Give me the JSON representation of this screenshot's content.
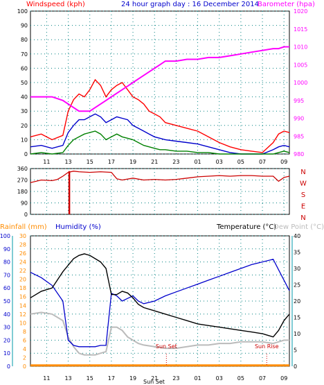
{
  "title": "24 hour graph day : 16 December 2014",
  "colors": {
    "wind": "#ff0000",
    "gust": "#ff0000",
    "avg_wind": "#0000cc",
    "low_wind": "#008000",
    "baro": "#ff00ff",
    "direction": "#cc0000",
    "rain": "#ff8c00",
    "humidity": "#0000cc",
    "temp": "#000000",
    "dew": "#bbbbbb",
    "axis_left": "#ff0000",
    "axis_blue": "#0000cc",
    "axis_cyan": "#0099aa",
    "grid": "#008080"
  },
  "x_ticks": [
    "11",
    "13",
    "15",
    "17",
    "19",
    "21",
    "23",
    "01",
    "03",
    "05",
    "07",
    "09"
  ],
  "chart_data": [
    {
      "type": "line",
      "name": "wind-baro",
      "left_label": "Windspeed (kph)",
      "right_label": "Barometer (hpa)",
      "ylim": [
        0,
        100
      ],
      "yticks": [
        0,
        10,
        20,
        30,
        40,
        50,
        60,
        70,
        80,
        90,
        100
      ],
      "y2lim": [
        980,
        1020
      ],
      "y2ticks": [
        980,
        985,
        990,
        995,
        1000,
        1005,
        1010,
        1015,
        1020
      ],
      "x": [
        9.5,
        10.5,
        11.5,
        12.5,
        13,
        13.5,
        14,
        14.5,
        15,
        15.5,
        16,
        16.5,
        17,
        17.5,
        18,
        18.5,
        19,
        19.5,
        20,
        20.5,
        21,
        21.5,
        22,
        23,
        24,
        25,
        26,
        27,
        28,
        29,
        30,
        31,
        32,
        32.5,
        33,
        33.5
      ],
      "series": [
        {
          "role": "gust",
          "values": [
            12,
            14,
            10,
            13,
            30,
            38,
            42,
            40,
            45,
            52,
            48,
            40,
            45,
            48,
            50,
            45,
            40,
            38,
            35,
            30,
            28,
            26,
            22,
            20,
            18,
            16,
            12,
            8,
            5,
            3,
            2,
            1,
            8,
            14,
            16,
            15
          ]
        },
        {
          "role": "avg",
          "values": [
            5,
            6,
            4,
            6,
            15,
            20,
            24,
            24,
            26,
            28,
            26,
            22,
            24,
            26,
            25,
            24,
            20,
            18,
            16,
            14,
            12,
            11,
            10,
            9,
            8,
            7,
            5,
            3,
            1,
            0,
            0,
            0,
            3,
            5,
            6,
            5
          ]
        },
        {
          "role": "low",
          "values": [
            0,
            1,
            0,
            1,
            6,
            10,
            12,
            14,
            15,
            16,
            14,
            10,
            12,
            14,
            12,
            11,
            10,
            8,
            6,
            5,
            4,
            3,
            3,
            2,
            2,
            1,
            1,
            0,
            0,
            0,
            0,
            0,
            0,
            1,
            2,
            1
          ]
        },
        {
          "role": "baro",
          "values": [
            996,
            996,
            996,
            995,
            994,
            993,
            992,
            992,
            992,
            993,
            994,
            995,
            996,
            997,
            998,
            999,
            1000,
            1001,
            1002,
            1003,
            1004,
            1005,
            1006,
            1006,
            1006.5,
            1006.5,
            1007,
            1007,
            1007.5,
            1008,
            1008.5,
            1009,
            1009.5,
            1009.5,
            1010,
            1010
          ]
        }
      ]
    },
    {
      "type": "line",
      "name": "wind-direction",
      "yticks": [
        0,
        90,
        180,
        270,
        360
      ],
      "ylim": [
        0,
        360
      ],
      "compass": [
        "N",
        "W",
        "S",
        "E",
        "N"
      ],
      "x": [
        9.5,
        10.5,
        11.5,
        12,
        12.5,
        13,
        13.5,
        14,
        15,
        16,
        17,
        17.5,
        18,
        19,
        20,
        21,
        22,
        23,
        24,
        25,
        26,
        27,
        28,
        29,
        30,
        31,
        32,
        32.5,
        33,
        33.5
      ],
      "values": [
        250,
        270,
        265,
        275,
        300,
        330,
        340,
        335,
        330,
        335,
        330,
        280,
        270,
        285,
        270,
        275,
        270,
        275,
        285,
        295,
        300,
        305,
        300,
        305,
        305,
        300,
        300,
        260,
        290,
        300
      ],
      "spike": {
        "x": 13.1,
        "from": 0,
        "to": 340
      }
    },
    {
      "type": "line",
      "name": "rain-humidity-temp",
      "left_labels": [
        "Rainfall (mm)",
        "Humidity (%)"
      ],
      "right_labels": [
        "Temperature (°C)",
        "Dew Point (°C)"
      ],
      "rain_ticks": [
        0,
        2,
        4,
        6,
        8,
        10,
        12,
        14,
        16,
        18,
        20,
        22,
        24,
        26,
        28,
        30
      ],
      "rain_lim": [
        0,
        30
      ],
      "hum_ticks": [
        0,
        10,
        20,
        30,
        40,
        50,
        60,
        70,
        80,
        90,
        100
      ],
      "hum_lim": [
        0,
        100
      ],
      "temp_ticks": [
        0,
        5,
        10,
        15,
        20,
        25,
        30,
        35,
        40
      ],
      "temp_lim": [
        0,
        40
      ],
      "x": [
        9.5,
        10.5,
        11.5,
        12.5,
        13,
        13.5,
        14,
        14.5,
        15,
        15.5,
        16,
        16.5,
        17,
        17.5,
        18,
        18.5,
        19,
        19.5,
        20,
        21,
        22,
        23,
        24,
        25,
        26,
        27,
        28,
        29,
        30,
        31,
        32,
        32.5,
        33,
        33.5
      ],
      "series": [
        {
          "role": "rain",
          "values": [
            0.2,
            0.2,
            0.2,
            0.2,
            0.2,
            0.2,
            0.2,
            0.2,
            0.2,
            0.2,
            0.2,
            0.2,
            0.2,
            0.2,
            0.2,
            0.2,
            0.2,
            0.2,
            0.2,
            0.2,
            0.2,
            0.2,
            0.2,
            0.2,
            0.2,
            0.2,
            0.2,
            0.2,
            0.2,
            0.2,
            0.2,
            0.2,
            0.2,
            0.2
          ]
        },
        {
          "role": "humidity",
          "values": [
            72,
            68,
            62,
            50,
            20,
            16,
            15,
            15,
            15,
            15,
            16,
            16,
            56,
            54,
            50,
            52,
            54,
            50,
            48,
            50,
            54,
            57,
            60,
            63,
            66,
            69,
            72,
            75,
            78,
            80,
            82,
            74,
            66,
            58
          ]
        },
        {
          "role": "temp",
          "values": [
            21,
            23,
            24,
            29,
            31,
            33,
            34,
            34.5,
            34,
            33,
            32,
            30,
            22,
            22,
            23,
            22.5,
            21,
            19,
            18,
            17,
            16,
            15,
            14,
            13,
            12.5,
            12,
            11.5,
            11,
            10.5,
            10,
            9,
            11,
            14,
            16
          ]
        },
        {
          "role": "dew",
          "values": [
            16,
            16.5,
            16,
            14,
            9,
            6,
            4,
            3.5,
            3.5,
            3.5,
            4,
            4.5,
            12,
            12,
            11,
            9,
            8,
            7,
            6.5,
            6,
            5.5,
            5.5,
            6,
            6.5,
            6.5,
            7,
            7,
            7.5,
            7.5,
            7.5,
            7,
            7.5,
            8,
            8
          ]
        }
      ],
      "markers": [
        {
          "label": "Sun Set",
          "x": 22.1
        },
        {
          "label": "Sun Rise",
          "x": 31.4
        }
      ],
      "bottom_label": "Sun Set"
    }
  ]
}
